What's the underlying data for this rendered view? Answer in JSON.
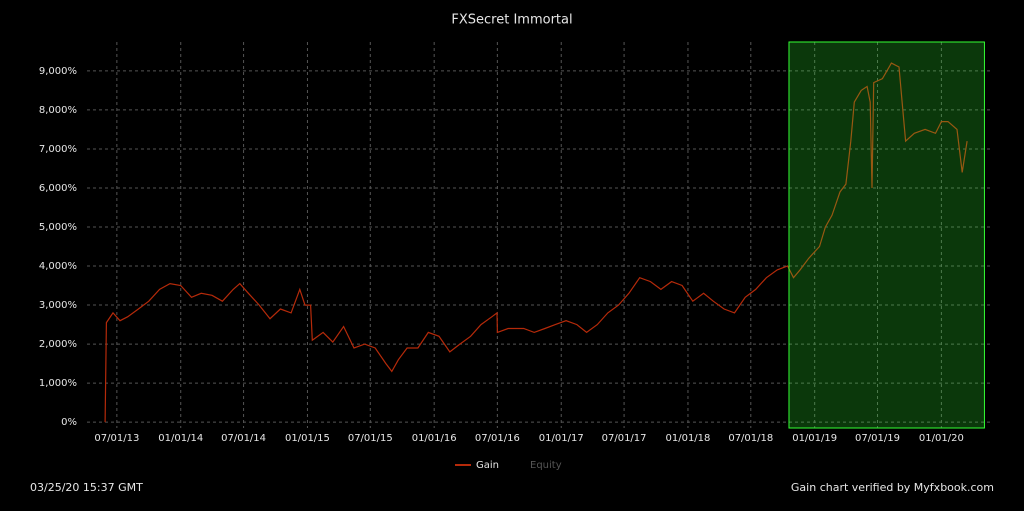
{
  "chart_data": {
    "type": "line",
    "title": "FXSecret Immortal",
    "x": [
      "2013-05-28",
      "2013-06-01",
      "2013-06-20",
      "2013-07-10",
      "2013-08-01",
      "2013-09-01",
      "2013-10-01",
      "2013-11-01",
      "2013-12-01",
      "2014-01-01",
      "2014-02-01",
      "2014-03-01",
      "2014-04-01",
      "2014-05-01",
      "2014-06-01",
      "2014-06-20",
      "2014-07-15",
      "2014-08-15",
      "2014-09-15",
      "2014-10-15",
      "2014-11-15",
      "2014-12-10",
      "2014-12-25",
      "2015-01-10",
      "2015-01-15",
      "2015-02-15",
      "2015-03-15",
      "2015-04-15",
      "2015-05-15",
      "2015-06-15",
      "2015-07-15",
      "2015-08-15",
      "2015-09-01",
      "2015-09-20",
      "2015-10-15",
      "2015-11-15",
      "2015-12-15",
      "2016-01-15",
      "2016-02-15",
      "2016-03-15",
      "2016-04-15",
      "2016-05-15",
      "2016-06-15",
      "2016-06-30",
      "2016-07-01",
      "2016-08-01",
      "2016-09-15",
      "2016-10-15",
      "2016-11-15",
      "2016-12-15",
      "2017-01-15",
      "2017-02-15",
      "2017-03-15",
      "2017-04-15",
      "2017-05-15",
      "2017-06-15",
      "2017-07-15",
      "2017-08-15",
      "2017-09-15",
      "2017-10-15",
      "2017-11-15",
      "2017-12-15",
      "2018-01-15",
      "2018-02-15",
      "2018-03-15",
      "2018-04-15",
      "2018-05-15",
      "2018-06-15",
      "2018-07-15",
      "2018-08-15",
      "2018-09-15",
      "2018-10-15",
      "2018-11-01",
      "2018-11-20",
      "2018-12-15",
      "2019-01-15",
      "2019-02-01",
      "2019-02-20",
      "2019-03-15",
      "2019-04-01",
      "2019-04-15",
      "2019-04-25",
      "2019-05-15",
      "2019-06-01",
      "2019-06-10",
      "2019-06-15",
      "2019-06-20",
      "2019-07-15",
      "2019-08-10",
      "2019-09-01",
      "2019-09-20",
      "2019-10-15",
      "2019-11-15",
      "2019-12-15",
      "2020-01-01",
      "2020-01-20",
      "2020-02-15",
      "2020-03-01",
      "2020-03-15"
    ],
    "series": [
      {
        "name": "Gain",
        "color": "#b52a0a",
        "values": [
          0,
          2550,
          2800,
          2600,
          2700,
          2900,
          3100,
          3400,
          3550,
          3500,
          3200,
          3300,
          3250,
          3100,
          3400,
          3550,
          3300,
          3000,
          2650,
          2900,
          2800,
          3400,
          3000,
          3000,
          2100,
          2300,
          2050,
          2450,
          1900,
          2000,
          1900,
          1500,
          1300,
          1600,
          1900,
          1900,
          2300,
          2200,
          1800,
          2000,
          2200,
          2500,
          2700,
          2800,
          2300,
          2400,
          2400,
          2300,
          2400,
          2500,
          2600,
          2500,
          2300,
          2500,
          2800,
          3000,
          3300,
          3700,
          3600,
          3400,
          3600,
          3500,
          3100,
          3300,
          3100,
          2900,
          2800,
          3200,
          3400,
          3700,
          3900,
          4000,
          3700,
          3900,
          4200,
          4500,
          5000,
          5300,
          5900,
          6100,
          7200,
          8200,
          8500,
          8600,
          8200,
          6000,
          8700,
          8800,
          9200,
          9100,
          7200,
          7400,
          7500,
          7400,
          7700,
          7700,
          7500,
          6400,
          7200
        ]
      }
    ],
    "legend_inactive": [
      "Equity"
    ],
    "xlim": [
      "2013-04-06",
      "2020-05-20"
    ],
    "xticks": [
      {
        "value": "2013-07-01",
        "label": "07/01/13"
      },
      {
        "value": "2014-01-01",
        "label": "01/01/14"
      },
      {
        "value": "2014-07-01",
        "label": "07/01/14"
      },
      {
        "value": "2015-01-01",
        "label": "01/01/15"
      },
      {
        "value": "2015-07-01",
        "label": "07/01/15"
      },
      {
        "value": "2016-01-01",
        "label": "01/01/16"
      },
      {
        "value": "2016-07-01",
        "label": "07/01/16"
      },
      {
        "value": "2017-01-01",
        "label": "01/01/17"
      },
      {
        "value": "2017-07-01",
        "label": "07/01/17"
      },
      {
        "value": "2018-01-01",
        "label": "01/01/18"
      },
      {
        "value": "2018-07-01",
        "label": "07/01/18"
      },
      {
        "value": "2019-01-01",
        "label": "01/01/19"
      },
      {
        "value": "2019-07-01",
        "label": "07/01/19"
      },
      {
        "value": "2020-01-01",
        "label": "01/01/20"
      }
    ],
    "ylim": [
      -150,
      9740
    ],
    "yticks": [
      {
        "value": 0,
        "label": "0%"
      },
      {
        "value": 1000,
        "label": "1,000%"
      },
      {
        "value": 2000,
        "label": "2,000%"
      },
      {
        "value": 3000,
        "label": "3,000%"
      },
      {
        "value": 4000,
        "label": "4,000%"
      },
      {
        "value": 5000,
        "label": "5,000%"
      },
      {
        "value": 6000,
        "label": "6,000%"
      },
      {
        "value": 7000,
        "label": "7,000%"
      },
      {
        "value": 8000,
        "label": "8,000%"
      },
      {
        "value": 9000,
        "label": "9,000%"
      }
    ],
    "grid": true,
    "highlight_xlim": [
      "2018-10-19",
      "2020-05-04"
    ],
    "highlight_color": "#33ff33",
    "timestamp": "03/25/20 15:37 GMT",
    "footer": "Gain chart verified by Myfxbook.com"
  }
}
